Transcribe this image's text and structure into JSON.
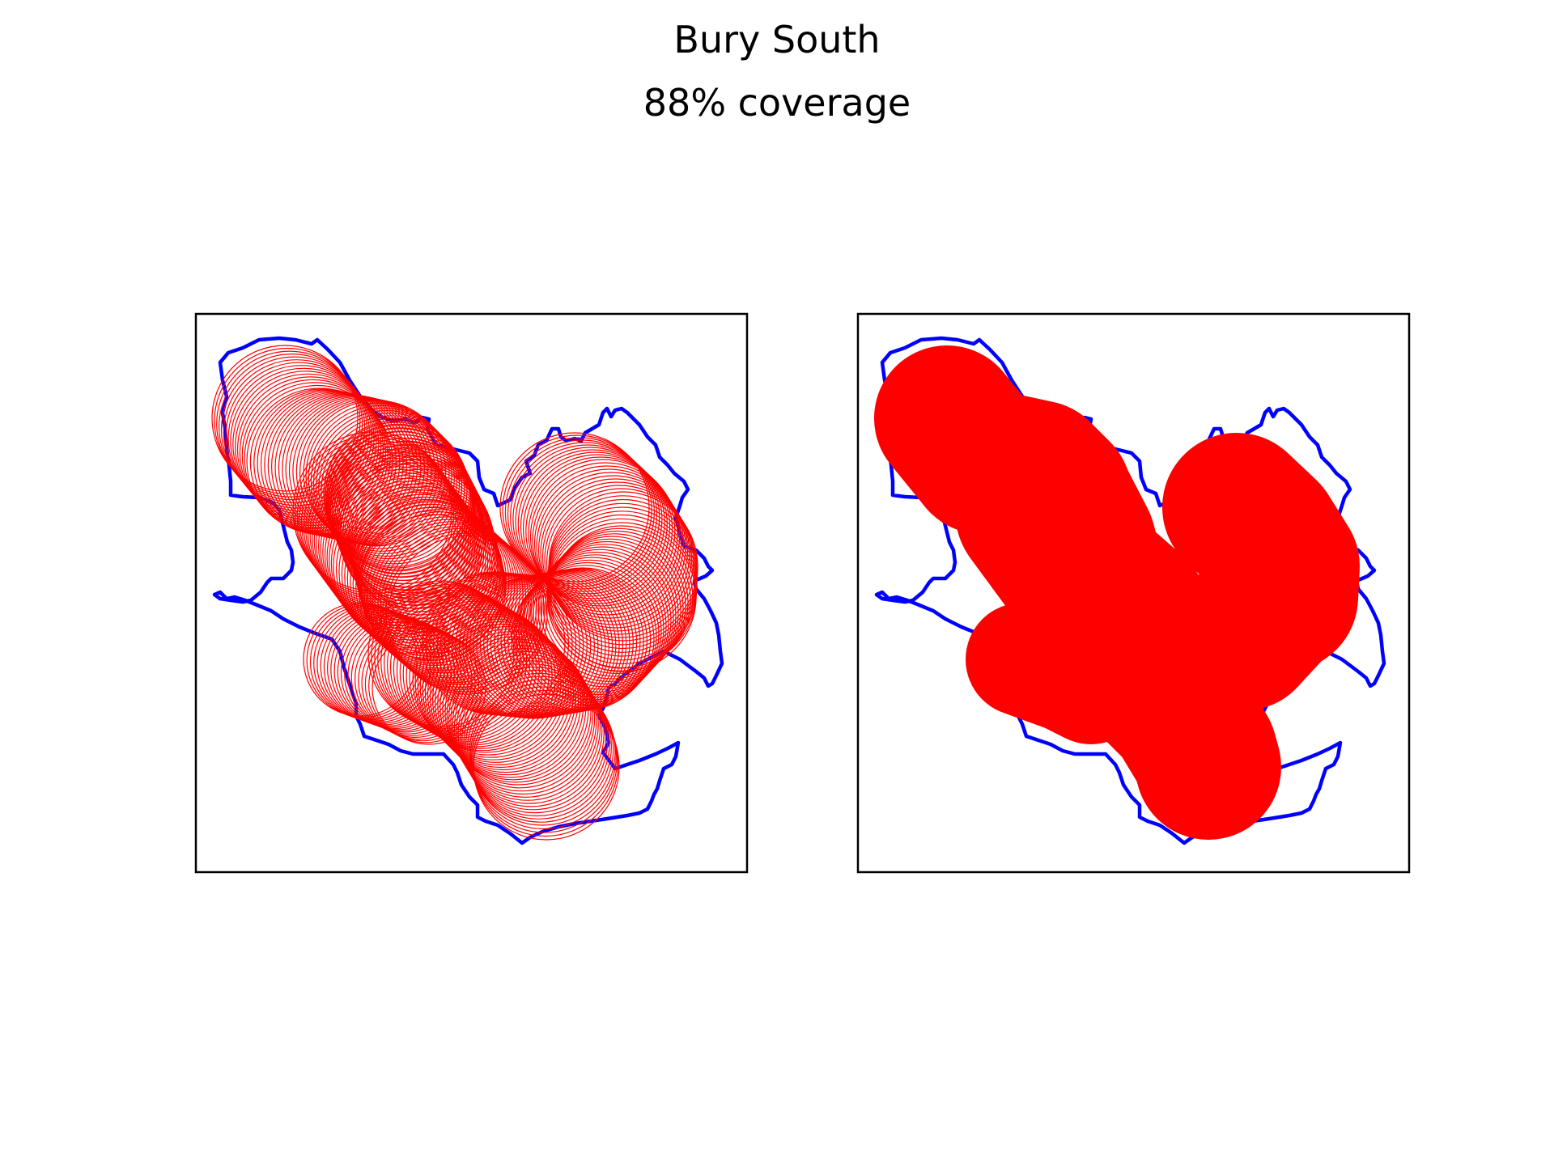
{
  "figure": {
    "title": "Bury South",
    "subtitle": "88% coverage"
  },
  "colors": {
    "boundary": "#0000ff",
    "circles": "#ff0000",
    "frame": "#000000",
    "background": "#ffffff"
  },
  "panels": [
    {
      "name": "outline-circles",
      "style": "outline"
    },
    {
      "name": "filled-circles",
      "style": "filled"
    }
  ]
}
